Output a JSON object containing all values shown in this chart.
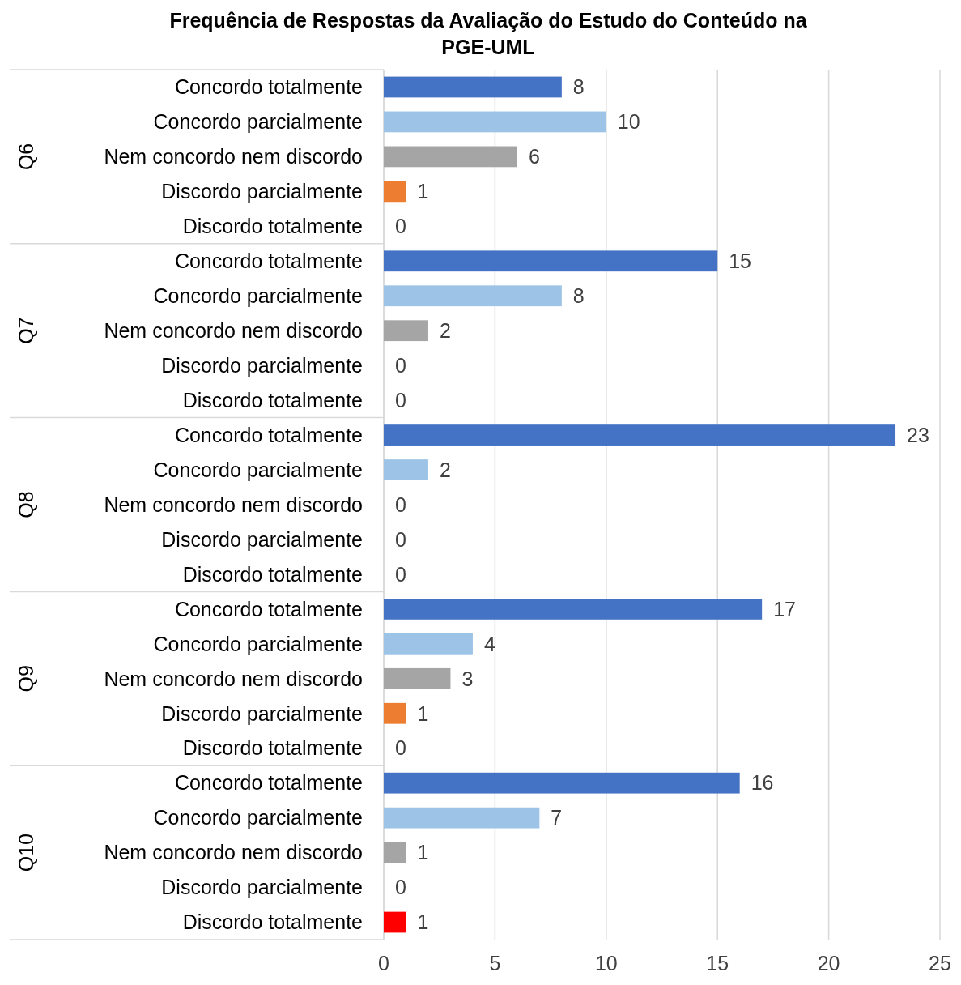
{
  "chart_data": {
    "type": "bar",
    "orientation": "horizontal",
    "title": "Frequência de Respostas da Avaliação do Estudo do Conteúdo na PGE-UML",
    "categories": [
      "Concordo totalmente",
      "Concordo parcialmente",
      "Nem concordo nem discordo",
      "Discordo parcialmente",
      "Discordo totalmente",
      "Concordo totalmente",
      "Concordo parcialmente",
      "Nem concordo nem discordo",
      "Discordo parcialmente",
      "Discordo totalmente",
      "Concordo totalmente",
      "Concordo parcialmente",
      "Nem concordo nem discordo",
      "Discordo parcialmente",
      "Discordo totalmente",
      "Concordo totalmente",
      "Concordo parcialmente",
      "Nem concordo nem discordo",
      "Discordo parcialmente",
      "Discordo totalmente",
      "Concordo totalmente",
      "Concordo parcialmente",
      "Nem concordo nem discordo",
      "Discordo parcialmente",
      "Discordo totalmente"
    ],
    "values": [
      8,
      10,
      6,
      1,
      0,
      15,
      8,
      2,
      0,
      0,
      23,
      2,
      0,
      0,
      0,
      17,
      4,
      3,
      1,
      0,
      16,
      7,
      1,
      0,
      1
    ],
    "colors": [
      "#4472c4",
      "#9dc3e6",
      "#a5a5a5",
      "#ed7d31",
      "#ed7d31",
      "#4472c4",
      "#9dc3e6",
      "#a5a5a5",
      "#ed7d31",
      "#ed7d31",
      "#4472c4",
      "#9dc3e6",
      "#a5a5a5",
      "#ed7d31",
      "#ed7d31",
      "#4472c4",
      "#9dc3e6",
      "#a5a5a5",
      "#ed7d31",
      "#ed7d31",
      "#4472c4",
      "#9dc3e6",
      "#a5a5a5",
      "#ed7d31",
      "#ff0000"
    ],
    "annotations": [
      "Q6",
      "Q7",
      "Q8",
      "Q9",
      "Q10"
    ],
    "xlim": [
      0,
      25
    ],
    "xticks": [
      0,
      5,
      10,
      15,
      20,
      25
    ],
    "grid": "x",
    "data_labels": true
  }
}
